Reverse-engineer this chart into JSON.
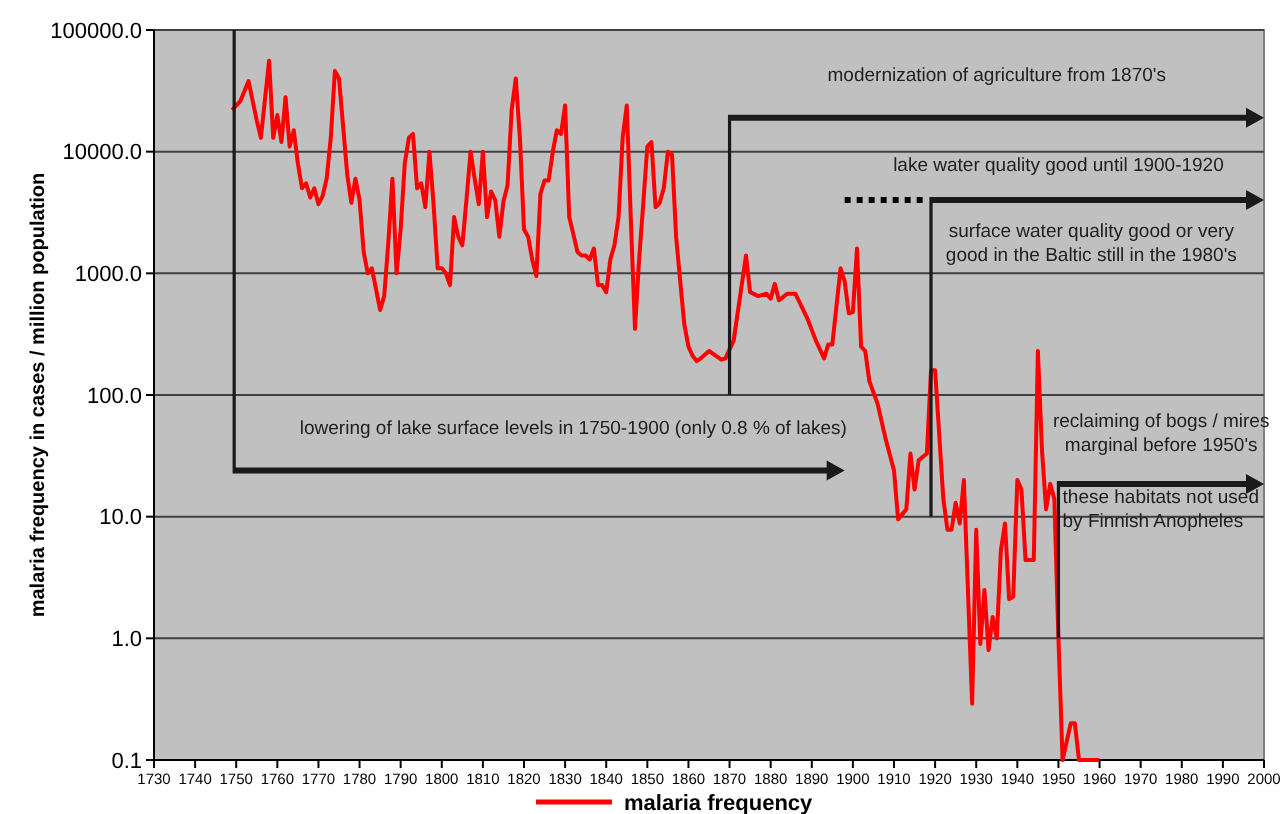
{
  "chart_data": {
    "type": "line",
    "ylabel": "malaria frequency in cases / million population",
    "log": "y",
    "grid": "y",
    "legend": "bottom",
    "marker": "none",
    "line_style": "solid",
    "xlim": [
      1730,
      2000
    ],
    "xticks": [
      1730,
      1740,
      1750,
      1760,
      1770,
      1780,
      1790,
      1800,
      1810,
      1820,
      1830,
      1840,
      1850,
      1860,
      1870,
      1880,
      1890,
      1900,
      1910,
      1920,
      1930,
      1940,
      1950,
      1960,
      1970,
      1980,
      1990,
      2000
    ],
    "ylim": [
      0.1,
      100000
    ],
    "yticks": [
      {
        "value": 0.1,
        "label": "0.1"
      },
      {
        "value": 1,
        "label": "1.0"
      },
      {
        "value": 10,
        "label": "10.0"
      },
      {
        "value": 100,
        "label": "100.0"
      },
      {
        "value": 1000,
        "label": "1000.0"
      },
      {
        "value": 10000,
        "label": "10000.0"
      },
      {
        "value": 100000,
        "label": "100000.0"
      }
    ],
    "annotations": [
      "modernization of agriculture from 1870's",
      "lake water quality good until 1900-1920",
      "surface water quality good or very good in the Baltic still in the 1980's",
      "lowering of lake surface levels in 1750-1900 (only 0.8 % of lakes)",
      "reclaiming of bogs / mires marginal before 1950's",
      {
        "text": "these habitats not used by Finnish Anopheles",
        "x": 1951,
        "y": 13
      }
    ],
    "series": [
      {
        "name": "malaria frequency",
        "color": "#ff0000",
        "x": [
          1749,
          1751,
          1753,
          1755,
          1756,
          1758,
          1759,
          1760,
          1761,
          1762,
          1763,
          1764,
          1765,
          1766,
          1767,
          1768,
          1769,
          1770,
          1771,
          1772,
          1773,
          1774,
          1775,
          1777,
          1778,
          1779,
          1780,
          1781,
          1782,
          1783,
          1785,
          1786,
          1787,
          1788,
          1789,
          1790,
          1791,
          1792,
          1793,
          1794,
          1795,
          1796,
          1797,
          1798,
          1799,
          1800,
          1801,
          1802,
          1803,
          1804,
          1805,
          1806,
          1807,
          1808,
          1809,
          1810,
          1811,
          1812,
          1813,
          1814,
          1815,
          1816,
          1817,
          1818,
          1819,
          1820,
          1821,
          1822,
          1823,
          1824,
          1825,
          1826,
          1827,
          1828,
          1829,
          1830,
          1831,
          1832,
          1833,
          1834,
          1835,
          1836,
          1837,
          1838,
          1839,
          1840,
          1841,
          1842,
          1843,
          1844,
          1845,
          1846,
          1847,
          1848,
          1849,
          1850,
          1851,
          1852,
          1853,
          1854,
          1855,
          1856,
          1857,
          1858,
          1859,
          1860,
          1861,
          1862,
          1863,
          1865,
          1868,
          1869,
          1871,
          1874,
          1875,
          1877,
          1879,
          1880,
          1881,
          1882,
          1884,
          1886,
          1887,
          1889,
          1891,
          1893,
          1894,
          1895,
          1897,
          1898,
          1899,
          1900,
          1901,
          1902,
          1903,
          1904,
          1906,
          1908,
          1910,
          1911,
          1913,
          1914,
          1915,
          1916,
          1918,
          1919,
          1920,
          1922,
          1923,
          1924,
          1925,
          1926,
          1927,
          1929,
          1930,
          1931,
          1932,
          1933,
          1934,
          1935,
          1936,
          1937,
          1938,
          1939,
          1940,
          1941,
          1942,
          1944,
          1945,
          1946,
          1947,
          1948,
          1949,
          1950,
          1951,
          1953,
          1954,
          1955,
          1960
        ],
        "values": [
          22000,
          26000,
          38000,
          18000,
          13000,
          56000,
          13000,
          20000,
          12000,
          28000,
          11000,
          15000,
          8000,
          5000,
          5500,
          4200,
          5000,
          3700,
          4300,
          6000,
          13000,
          46000,
          40000,
          6500,
          3800,
          6000,
          4000,
          1500,
          1000,
          1100,
          500,
          650,
          1800,
          6000,
          1000,
          2300,
          8000,
          13000,
          14000,
          5000,
          5500,
          3500,
          10000,
          3700,
          1100,
          1100,
          1000,
          800,
          2900,
          2000,
          1700,
          4000,
          10000,
          6000,
          3700,
          10000,
          2900,
          4700,
          4000,
          2000,
          3900,
          5300,
          22000,
          40000,
          13000,
          2300,
          2000,
          1300,
          950,
          4500,
          5800,
          5800,
          10000,
          15000,
          14000,
          24000,
          2900,
          2100,
          1500,
          1400,
          1400,
          1300,
          1600,
          800,
          800,
          700,
          1300,
          1700,
          2900,
          13000,
          24000,
          2700,
          350,
          1300,
          3700,
          11000,
          12000,
          3500,
          3800,
          5000,
          10000,
          9500,
          2000,
          860,
          380,
          250,
          210,
          190,
          200,
          230,
          195,
          200,
          280,
          1400,
          700,
          650,
          680,
          620,
          820,
          600,
          680,
          680,
          580,
          420,
          280,
          200,
          260,
          260,
          1100,
          860,
          470,
          480,
          1600,
          250,
          230,
          130,
          85,
          43,
          24,
          9.5,
          11.5,
          33,
          16.7,
          29,
          33,
          160,
          160,
          14,
          7.8,
          7.8,
          13,
          8.8,
          20,
          0.29,
          7.8,
          0.9,
          2.5,
          0.8,
          1.5,
          1,
          5.3,
          8.8,
          2.1,
          2.2,
          20,
          16.7,
          4.4,
          4.4,
          230,
          35,
          11.5,
          18.6,
          14,
          1,
          0.1,
          0.2,
          0.2,
          0.1,
          0.1
        ]
      }
    ]
  }
}
